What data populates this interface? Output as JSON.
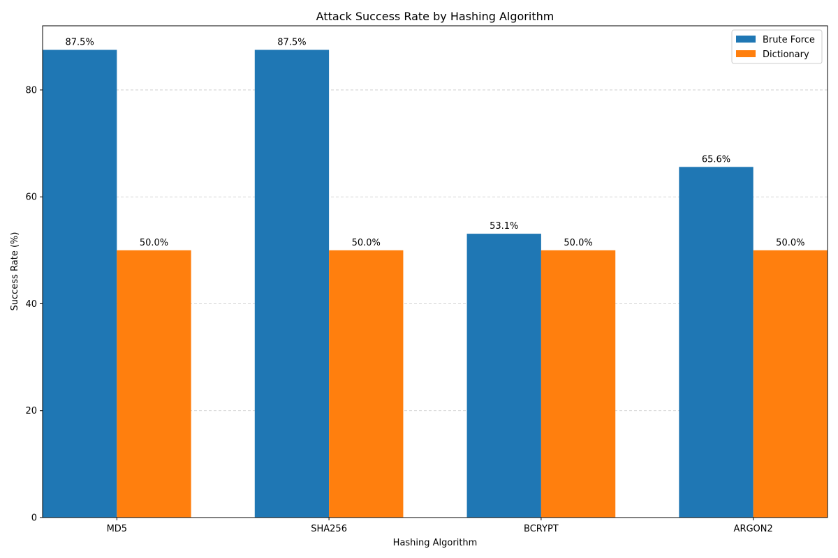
{
  "chart_data": {
    "type": "bar",
    "title": "Attack Success Rate by Hashing Algorithm",
    "xlabel": "Hashing Algorithm",
    "ylabel": "Success Rate (%)",
    "categories": [
      "MD5",
      "SHA256",
      "BCRYPT",
      "ARGON2"
    ],
    "series": [
      {
        "name": "Brute Force",
        "color": "#1f77b4",
        "values": [
          87.5,
          87.5,
          53.1,
          65.6
        ],
        "labels": [
          "87.5%",
          "87.5%",
          "53.1%",
          "65.6%"
        ]
      },
      {
        "name": "Dictionary",
        "color": "#ff7f0e",
        "values": [
          50.0,
          50.0,
          50.0,
          50.0
        ],
        "labels": [
          "50.0%",
          "50.0%",
          "50.0%",
          "50.0%"
        ]
      }
    ],
    "ylim": [
      0,
      92
    ],
    "yticks": [
      0,
      20,
      40,
      60,
      80
    ],
    "ytick_labels": [
      "0",
      "20",
      "40",
      "60",
      "80"
    ],
    "grid": "y-dashed",
    "legend_position": "top-right"
  }
}
